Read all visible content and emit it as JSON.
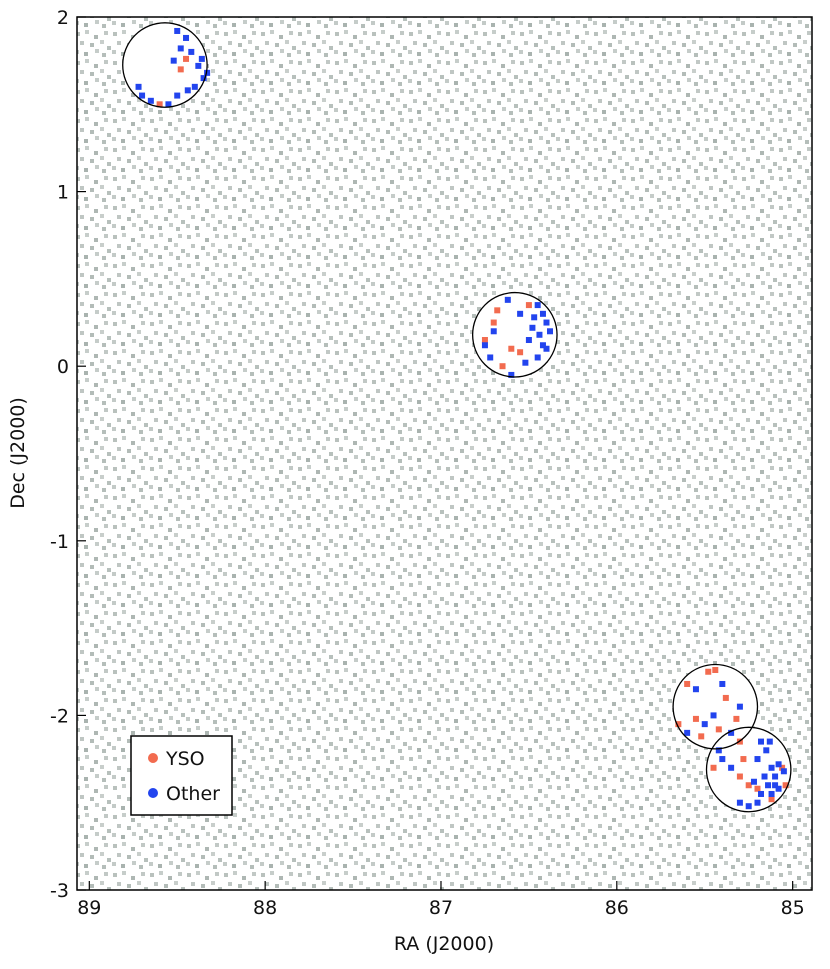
{
  "chart_data": {
    "type": "scatter",
    "xlabel": "RA (J2000)",
    "ylabel": "Dec (J2000)",
    "xlim": [
      89.07,
      84.89
    ],
    "ylim": [
      -3,
      2
    ],
    "xticks": [
      89,
      88,
      87,
      86,
      85
    ],
    "yticks": [
      -3,
      -2,
      -1,
      0,
      1,
      2
    ],
    "x_reversed": true,
    "legend": "lower left",
    "circles": [
      {
        "ra": 88.57,
        "dec": 1.725,
        "radius": 0.24
      },
      {
        "ra": 86.58,
        "dec": 0.18,
        "radius": 0.24
      },
      {
        "ra": 85.44,
        "dec": -1.95,
        "radius": 0.24
      },
      {
        "ra": 85.25,
        "dec": -2.31,
        "radius": 0.24
      }
    ],
    "series": [
      {
        "name": "YSO",
        "color": "#f26b4f",
        "x": [
          88.48,
          88.45,
          88.6,
          86.68,
          86.7,
          86.6,
          86.55,
          86.5,
          86.65,
          86.75,
          85.48,
          85.44,
          85.6,
          85.38,
          85.32,
          85.55,
          85.42,
          85.65,
          85.52,
          85.3,
          85.28,
          85.06,
          85.2,
          85.45,
          85.25,
          85.12,
          85.3,
          85.04
        ],
        "y": [
          1.7,
          1.76,
          1.5,
          0.32,
          0.25,
          0.1,
          0.08,
          0.35,
          0.0,
          0.15,
          -1.75,
          -1.74,
          -1.82,
          -1.9,
          -2.02,
          -2.02,
          -2.08,
          -2.05,
          -2.12,
          -2.15,
          -2.25,
          -2.3,
          -2.42,
          -2.3,
          -2.4,
          -2.48,
          -2.35,
          -2.4
        ]
      },
      {
        "name": "Other",
        "color": "#2244ee",
        "x": [
          88.5,
          88.45,
          88.42,
          88.38,
          88.35,
          88.33,
          88.4,
          88.44,
          88.5,
          88.55,
          88.65,
          88.72,
          88.7,
          88.48,
          88.52,
          88.36,
          86.45,
          86.42,
          86.4,
          86.38,
          86.42,
          86.45,
          86.4,
          86.5,
          86.48,
          86.55,
          86.7,
          86.75,
          86.72,
          86.6,
          86.62,
          86.52,
          86.44,
          86.47,
          85.55,
          85.4,
          85.45,
          85.5,
          85.35,
          85.6,
          85.3,
          85.42,
          85.15,
          85.12,
          85.1,
          85.08,
          85.14,
          85.18,
          85.2,
          85.25,
          85.3,
          85.12,
          85.05,
          85.18,
          85.2,
          85.16,
          85.1,
          85.22,
          85.35,
          85.4,
          85.13,
          85.08
        ],
        "y": [
          1.92,
          1.88,
          1.8,
          1.72,
          1.65,
          1.68,
          1.6,
          1.58,
          1.55,
          1.5,
          1.52,
          1.6,
          1.55,
          1.82,
          1.75,
          1.76,
          0.35,
          0.3,
          0.25,
          0.2,
          0.12,
          0.05,
          0.1,
          0.15,
          0.22,
          0.3,
          0.2,
          0.12,
          0.05,
          -0.05,
          0.38,
          0.02,
          0.18,
          0.28,
          -1.85,
          -1.82,
          -2.0,
          -2.05,
          -2.1,
          -2.1,
          -1.95,
          -2.2,
          -2.2,
          -2.3,
          -2.35,
          -2.28,
          -2.4,
          -2.45,
          -2.5,
          -2.52,
          -2.5,
          -2.45,
          -2.32,
          -2.15,
          -2.25,
          -2.35,
          -2.4,
          -2.38,
          -2.3,
          -2.25,
          -2.15,
          -2.42
        ]
      }
    ]
  }
}
